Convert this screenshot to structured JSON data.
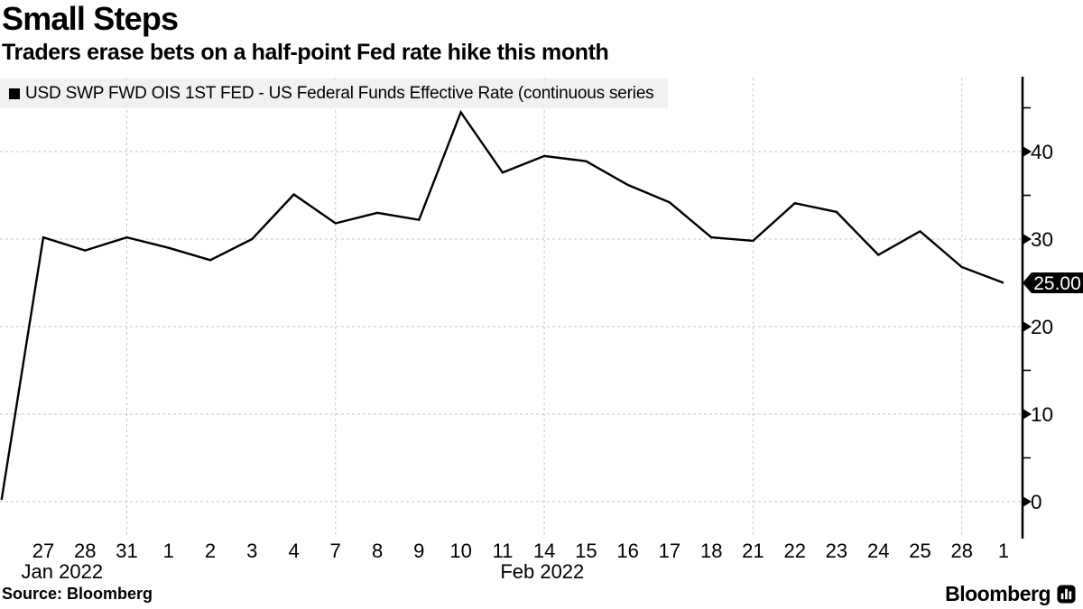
{
  "header": {
    "title": "Small Steps",
    "subtitle": "Traders erase bets on a half-point Fed rate hike this month"
  },
  "legend": {
    "marker_icon": "black-square",
    "label": "USD SWP FWD OIS 1ST FED - US Federal Funds Effective Rate (continuous series"
  },
  "footer": {
    "source": "Source: Bloomberg",
    "brand": "Bloomberg",
    "brand_icon": "bloomberg-bars-icon"
  },
  "colors": {
    "line": "#000000",
    "grid": "#c6c6c6",
    "legend_bg": "#efefef",
    "tag_bg": "#000000",
    "tag_text": "#ffffff",
    "background": "#ffffff"
  },
  "chart_data": {
    "type": "line",
    "title": "Small Steps",
    "subtitle": "Traders erase bets on a half-point Fed rate hike this month",
    "grid": "dashed",
    "legend_position": "top-left",
    "y_axis": {
      "side": "right",
      "ylim": [
        0,
        45
      ],
      "major_ticks": [
        0,
        10,
        20,
        30,
        40
      ],
      "minor_ticks": [
        5,
        15,
        25,
        35,
        45
      ],
      "last_value": 25.0,
      "last_value_label": "25.00"
    },
    "x_axis": {
      "month_labels": [
        "Jan 2022",
        "Feb 2022"
      ],
      "weekly_gridlines_on_mondays": true
    },
    "series": [
      {
        "name": "USD SWP FWD OIS 1ST FED - US Federal Funds Effective Rate (continuous series",
        "color": "#000000",
        "points": [
          {
            "label": "",
            "value": 0.2,
            "monday_gridline": false,
            "show_label": false
          },
          {
            "label": "27",
            "value": 30.2,
            "monday_gridline": false,
            "show_label": true
          },
          {
            "label": "28",
            "value": 28.7,
            "monday_gridline": false,
            "show_label": true
          },
          {
            "label": "31",
            "value": 30.2,
            "monday_gridline": true,
            "show_label": true
          },
          {
            "label": "1",
            "value": 29.0,
            "monday_gridline": false,
            "show_label": true
          },
          {
            "label": "2",
            "value": 27.6,
            "monday_gridline": false,
            "show_label": true
          },
          {
            "label": "3",
            "value": 30.0,
            "monday_gridline": false,
            "show_label": true
          },
          {
            "label": "4",
            "value": 35.1,
            "monday_gridline": false,
            "show_label": true
          },
          {
            "label": "7",
            "value": 31.8,
            "monday_gridline": true,
            "show_label": true
          },
          {
            "label": "8",
            "value": 33.0,
            "monday_gridline": false,
            "show_label": true
          },
          {
            "label": "9",
            "value": 32.2,
            "monday_gridline": false,
            "show_label": true
          },
          {
            "label": "10",
            "value": 44.5,
            "monday_gridline": false,
            "show_label": true
          },
          {
            "label": "11",
            "value": 37.6,
            "monday_gridline": false,
            "show_label": true
          },
          {
            "label": "14",
            "value": 39.5,
            "monday_gridline": true,
            "show_label": true
          },
          {
            "label": "15",
            "value": 38.9,
            "monday_gridline": false,
            "show_label": true
          },
          {
            "label": "16",
            "value": 36.2,
            "monday_gridline": false,
            "show_label": true
          },
          {
            "label": "17",
            "value": 34.2,
            "monday_gridline": false,
            "show_label": true
          },
          {
            "label": "18",
            "value": 30.2,
            "monday_gridline": false,
            "show_label": true
          },
          {
            "label": "21",
            "value": 29.8,
            "monday_gridline": true,
            "show_label": true
          },
          {
            "label": "22",
            "value": 34.1,
            "monday_gridline": false,
            "show_label": true
          },
          {
            "label": "23",
            "value": 33.1,
            "monday_gridline": false,
            "show_label": true
          },
          {
            "label": "24",
            "value": 28.2,
            "monday_gridline": false,
            "show_label": true
          },
          {
            "label": "25",
            "value": 30.9,
            "monday_gridline": false,
            "show_label": true
          },
          {
            "label": "28",
            "value": 26.8,
            "monday_gridline": true,
            "show_label": true
          },
          {
            "label": "1",
            "value": 25.0,
            "monday_gridline": false,
            "show_label": true
          }
        ]
      }
    ]
  }
}
